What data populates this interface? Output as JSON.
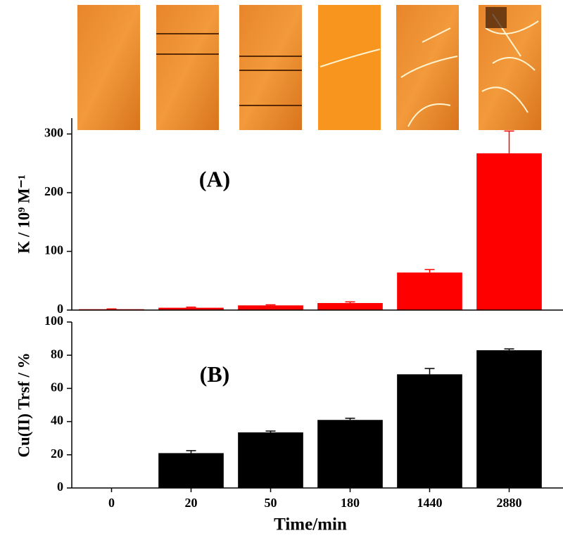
{
  "chart_data": [
    {
      "type": "bar",
      "y_label": "K / 10⁹ M⁻¹",
      "annotation": "(A)",
      "color": "#ff0000",
      "values": [
        1.5,
        4,
        8,
        12,
        64,
        267
      ],
      "errors": [
        0.5,
        1,
        1,
        2,
        5,
        38
      ],
      "ylim": [
        0,
        327
      ],
      "yticks": [
        0,
        100,
        200,
        300
      ]
    },
    {
      "type": "bar",
      "y_label": "Cu(II) Trsf / %",
      "annotation": "(B)",
      "color": "#000000",
      "x_label": "Time/min",
      "categories": [
        "0",
        "20",
        "50",
        "180",
        "1440",
        "2880"
      ],
      "values": [
        0,
        21,
        33.5,
        41,
        68.5,
        83
      ],
      "errors": [
        null,
        1.5,
        0.8,
        1,
        3.5,
        0.8
      ],
      "ylim": [
        0,
        100
      ],
      "yticks": [
        0,
        20,
        40,
        60,
        80,
        100
      ]
    }
  ]
}
